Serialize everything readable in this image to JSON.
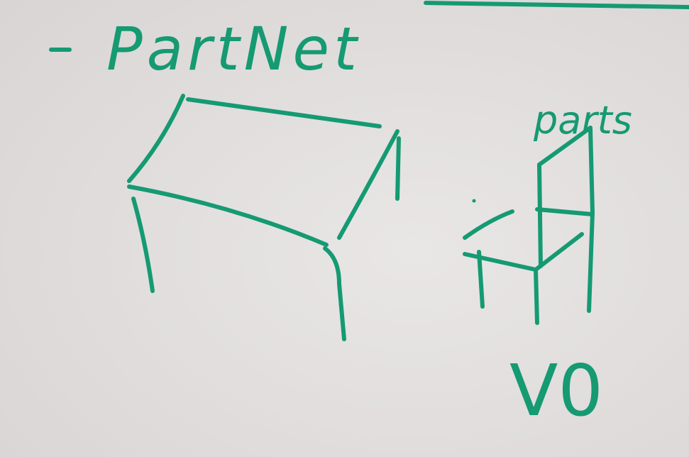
{
  "title": "PartNet",
  "label": "parts",
  "caption": "V0"
}
